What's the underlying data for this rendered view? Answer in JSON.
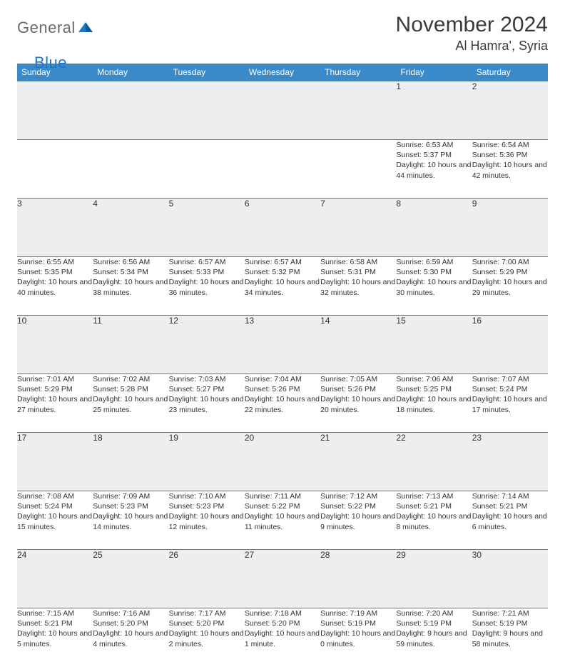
{
  "logo": {
    "text1": "General",
    "text2": "Blue"
  },
  "header": {
    "month_title": "November 2024",
    "location": "Al Hamra', Syria"
  },
  "colors": {
    "header_bg": "#3a8ac9",
    "header_text": "#ffffff",
    "daynum_bg": "#eceef0",
    "row_border": "#5a7a9a",
    "logo_gray": "#6a6a6a",
    "logo_blue": "#1f78c4"
  },
  "weekdays": [
    "Sunday",
    "Monday",
    "Tuesday",
    "Wednesday",
    "Thursday",
    "Friday",
    "Saturday"
  ],
  "weeks": [
    [
      {
        "n": "",
        "sunrise": "",
        "sunset": "",
        "day": ""
      },
      {
        "n": "",
        "sunrise": "",
        "sunset": "",
        "day": ""
      },
      {
        "n": "",
        "sunrise": "",
        "sunset": "",
        "day": ""
      },
      {
        "n": "",
        "sunrise": "",
        "sunset": "",
        "day": ""
      },
      {
        "n": "",
        "sunrise": "",
        "sunset": "",
        "day": ""
      },
      {
        "n": "1",
        "sunrise": "Sunrise: 6:53 AM",
        "sunset": "Sunset: 5:37 PM",
        "day": "Daylight: 10 hours and 44 minutes."
      },
      {
        "n": "2",
        "sunrise": "Sunrise: 6:54 AM",
        "sunset": "Sunset: 5:36 PM",
        "day": "Daylight: 10 hours and 42 minutes."
      }
    ],
    [
      {
        "n": "3",
        "sunrise": "Sunrise: 6:55 AM",
        "sunset": "Sunset: 5:35 PM",
        "day": "Daylight: 10 hours and 40 minutes."
      },
      {
        "n": "4",
        "sunrise": "Sunrise: 6:56 AM",
        "sunset": "Sunset: 5:34 PM",
        "day": "Daylight: 10 hours and 38 minutes."
      },
      {
        "n": "5",
        "sunrise": "Sunrise: 6:57 AM",
        "sunset": "Sunset: 5:33 PM",
        "day": "Daylight: 10 hours and 36 minutes."
      },
      {
        "n": "6",
        "sunrise": "Sunrise: 6:57 AM",
        "sunset": "Sunset: 5:32 PM",
        "day": "Daylight: 10 hours and 34 minutes."
      },
      {
        "n": "7",
        "sunrise": "Sunrise: 6:58 AM",
        "sunset": "Sunset: 5:31 PM",
        "day": "Daylight: 10 hours and 32 minutes."
      },
      {
        "n": "8",
        "sunrise": "Sunrise: 6:59 AM",
        "sunset": "Sunset: 5:30 PM",
        "day": "Daylight: 10 hours and 30 minutes."
      },
      {
        "n": "9",
        "sunrise": "Sunrise: 7:00 AM",
        "sunset": "Sunset: 5:29 PM",
        "day": "Daylight: 10 hours and 29 minutes."
      }
    ],
    [
      {
        "n": "10",
        "sunrise": "Sunrise: 7:01 AM",
        "sunset": "Sunset: 5:29 PM",
        "day": "Daylight: 10 hours and 27 minutes."
      },
      {
        "n": "11",
        "sunrise": "Sunrise: 7:02 AM",
        "sunset": "Sunset: 5:28 PM",
        "day": "Daylight: 10 hours and 25 minutes."
      },
      {
        "n": "12",
        "sunrise": "Sunrise: 7:03 AM",
        "sunset": "Sunset: 5:27 PM",
        "day": "Daylight: 10 hours and 23 minutes."
      },
      {
        "n": "13",
        "sunrise": "Sunrise: 7:04 AM",
        "sunset": "Sunset: 5:26 PM",
        "day": "Daylight: 10 hours and 22 minutes."
      },
      {
        "n": "14",
        "sunrise": "Sunrise: 7:05 AM",
        "sunset": "Sunset: 5:26 PM",
        "day": "Daylight: 10 hours and 20 minutes."
      },
      {
        "n": "15",
        "sunrise": "Sunrise: 7:06 AM",
        "sunset": "Sunset: 5:25 PM",
        "day": "Daylight: 10 hours and 18 minutes."
      },
      {
        "n": "16",
        "sunrise": "Sunrise: 7:07 AM",
        "sunset": "Sunset: 5:24 PM",
        "day": "Daylight: 10 hours and 17 minutes."
      }
    ],
    [
      {
        "n": "17",
        "sunrise": "Sunrise: 7:08 AM",
        "sunset": "Sunset: 5:24 PM",
        "day": "Daylight: 10 hours and 15 minutes."
      },
      {
        "n": "18",
        "sunrise": "Sunrise: 7:09 AM",
        "sunset": "Sunset: 5:23 PM",
        "day": "Daylight: 10 hours and 14 minutes."
      },
      {
        "n": "19",
        "sunrise": "Sunrise: 7:10 AM",
        "sunset": "Sunset: 5:23 PM",
        "day": "Daylight: 10 hours and 12 minutes."
      },
      {
        "n": "20",
        "sunrise": "Sunrise: 7:11 AM",
        "sunset": "Sunset: 5:22 PM",
        "day": "Daylight: 10 hours and 11 minutes."
      },
      {
        "n": "21",
        "sunrise": "Sunrise: 7:12 AM",
        "sunset": "Sunset: 5:22 PM",
        "day": "Daylight: 10 hours and 9 minutes."
      },
      {
        "n": "22",
        "sunrise": "Sunrise: 7:13 AM",
        "sunset": "Sunset: 5:21 PM",
        "day": "Daylight: 10 hours and 8 minutes."
      },
      {
        "n": "23",
        "sunrise": "Sunrise: 7:14 AM",
        "sunset": "Sunset: 5:21 PM",
        "day": "Daylight: 10 hours and 6 minutes."
      }
    ],
    [
      {
        "n": "24",
        "sunrise": "Sunrise: 7:15 AM",
        "sunset": "Sunset: 5:21 PM",
        "day": "Daylight: 10 hours and 5 minutes."
      },
      {
        "n": "25",
        "sunrise": "Sunrise: 7:16 AM",
        "sunset": "Sunset: 5:20 PM",
        "day": "Daylight: 10 hours and 4 minutes."
      },
      {
        "n": "26",
        "sunrise": "Sunrise: 7:17 AM",
        "sunset": "Sunset: 5:20 PM",
        "day": "Daylight: 10 hours and 2 minutes."
      },
      {
        "n": "27",
        "sunrise": "Sunrise: 7:18 AM",
        "sunset": "Sunset: 5:20 PM",
        "day": "Daylight: 10 hours and 1 minute."
      },
      {
        "n": "28",
        "sunrise": "Sunrise: 7:19 AM",
        "sunset": "Sunset: 5:19 PM",
        "day": "Daylight: 10 hours and 0 minutes."
      },
      {
        "n": "29",
        "sunrise": "Sunrise: 7:20 AM",
        "sunset": "Sunset: 5:19 PM",
        "day": "Daylight: 9 hours and 59 minutes."
      },
      {
        "n": "30",
        "sunrise": "Sunrise: 7:21 AM",
        "sunset": "Sunset: 5:19 PM",
        "day": "Daylight: 9 hours and 58 minutes."
      }
    ]
  ]
}
